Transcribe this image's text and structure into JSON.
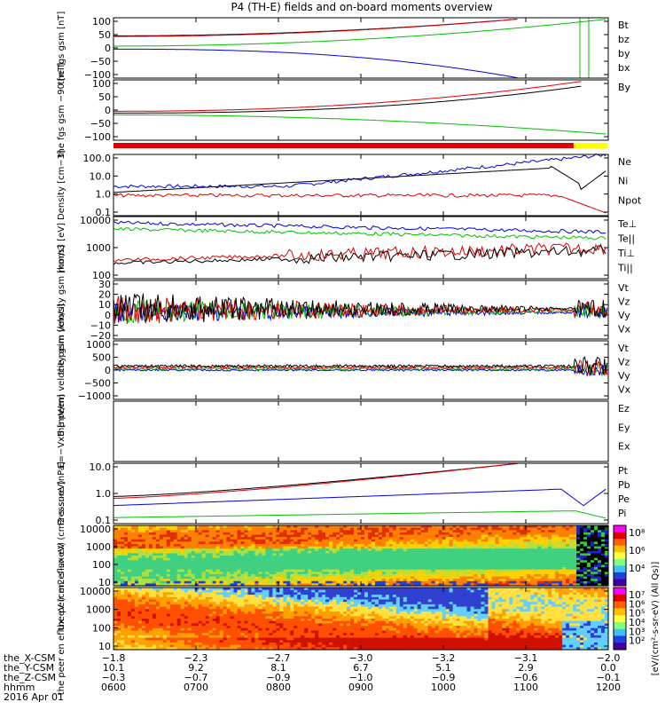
{
  "title": "P4 (TH-E) fields and on-board moments overview",
  "colors": {
    "black": "#000000",
    "red": "#e00000",
    "green": "#00c000",
    "blue": "#0000e0"
  },
  "panels": [
    {
      "ylabel": "the fgs gsm [nT]",
      "yticks": [
        "100",
        "50",
        "0",
        "−50",
        "−100"
      ],
      "legend": [
        {
          "text": "Bt",
          "color": "#000"
        },
        {
          "text": "bz",
          "color": "#e00000"
        },
        {
          "text": "by",
          "color": "#00c000"
        },
        {
          "text": "bx",
          "color": "#0000e0"
        }
      ]
    },
    {
      "ylabel": "the fgs gsm −90 [nT]",
      "yticks": [
        "100",
        "50",
        "0",
        "−50",
        "−100"
      ],
      "legend": [
        {
          "text": "By",
          "color": "#00c000"
        }
      ]
    },
    {
      "ylabel": "Density [cm−3]",
      "yticks": [
        "100.0",
        "10.0",
        "1.0",
        "0.1"
      ],
      "legend": [
        {
          "text": "Ne",
          "color": "#e00000"
        },
        {
          "text": "Ni",
          "color": "#000"
        },
        {
          "text": "Npot",
          "color": "#0000e0"
        }
      ]
    },
    {
      "ylabel": "mom3 [eV]",
      "yticks": [
        "10000",
        "1000",
        "100"
      ],
      "legend": [
        {
          "text": "Te⊥",
          "color": "#e00000"
        },
        {
          "text": "Te||",
          "color": "#000"
        },
        {
          "text": "Ti⊥",
          "color": "#e0a000"
        },
        {
          "text": "Ti||",
          "color": "#00c000"
        }
      ]
    },
    {
      "ylabel": "the peim velocity gsm [km/s]",
      "yticks": [
        "30",
        "20",
        "10",
        "0",
        "−10",
        "−20"
      ],
      "legend": [
        {
          "text": "Vt",
          "color": "#000"
        },
        {
          "text": "Vz",
          "color": "#e00000"
        },
        {
          "text": "Vy",
          "color": "#00c000"
        },
        {
          "text": "Vx",
          "color": "#0000e0"
        }
      ]
    },
    {
      "ylabel": "the peem velocity gsm [km/s]",
      "yticks": [
        "1000",
        "500",
        "0",
        "−500",
        "−1000"
      ],
      "legend": [
        {
          "text": "Vt",
          "color": "#000"
        },
        {
          "text": "Vz",
          "color": "#e00000"
        },
        {
          "text": "Vy",
          "color": "#00c000"
        },
        {
          "text": "Vx",
          "color": "#0000e0"
        }
      ]
    },
    {
      "ylabel": "E=−VxB [mV/m]",
      "yticks": [],
      "legend": [
        {
          "text": "Ez",
          "color": "#e00000"
        },
        {
          "text": "Ey",
          "color": "#00c000"
        },
        {
          "text": "Ex",
          "color": "#0000e0"
        }
      ]
    },
    {
      "ylabel": "Pressure [nPa]",
      "yticks": [
        "10.0",
        "1.0",
        "0.1"
      ],
      "legend": [
        {
          "text": "Pt",
          "color": "#000"
        },
        {
          "text": "Pb",
          "color": "#e00000"
        },
        {
          "text": "Pe",
          "color": "#00c000"
        },
        {
          "text": "Pi",
          "color": "#0000e0"
        }
      ]
    },
    {
      "ylabel": "the peir en eflux eV (cm2-s-sr-eV)",
      "yticks": [
        "10000",
        "1000",
        "100",
        "10"
      ],
      "colorbar": [
        "10⁸",
        "10⁶",
        "10⁴"
      ],
      "legend": []
    },
    {
      "ylabel": "the peer en eflux eV (cm2-s-sr-eV)",
      "yticks": [
        "10000",
        "1000",
        "100",
        "10"
      ],
      "colorbar": [
        "10⁷",
        "10⁶",
        "10⁵",
        "10⁴",
        "10³",
        "10²"
      ],
      "legend": []
    }
  ],
  "colorbar_label": "[eV/(cm²-s-sr-eV) (All Qs)]",
  "footer": {
    "row_labels": [
      "the_X-CSM",
      "the_Y-CSM",
      "the_Z-CSM",
      "hhmm",
      "2016 Apr 01"
    ],
    "columns": [
      {
        "x": "−1.8",
        "y": "10.1",
        "z": "−0.3",
        "t": "0600"
      },
      {
        "x": "−2.3",
        "y": "9.2",
        "z": "−0.7",
        "t": "0700"
      },
      {
        "x": "−2.7",
        "y": "8.1",
        "z": "−0.9",
        "t": "0800"
      },
      {
        "x": "−3.0",
        "y": "6.7",
        "z": "−1.0",
        "t": "0900"
      },
      {
        "x": "−3.2",
        "y": "5.1",
        "z": "−0.9",
        "t": "1000"
      },
      {
        "x": "−3.1",
        "y": "2.9",
        "z": "−0.6",
        "t": "1100"
      },
      {
        "x": "−2.0",
        "y": "0.0",
        "z": "−0.1",
        "t": "1200"
      }
    ]
  },
  "chart_data": {
    "type": "line",
    "title": "P4 (TH-E) fields and on-board moments overview",
    "x_unit": "hhmm",
    "x": [
      "0600",
      "0700",
      "0800",
      "0900",
      "1000",
      "1100",
      "1200"
    ],
    "series": [
      {
        "name": "Bt",
        "panel": 0,
        "values": [
          35,
          42,
          50,
          60,
          72,
          90,
          100
        ]
      },
      {
        "name": "bz",
        "panel": 0,
        "values": [
          35,
          42,
          50,
          60,
          72,
          90,
          100
        ]
      },
      {
        "name": "by",
        "panel": 0,
        "values": [
          5,
          12,
          18,
          26,
          36,
          50,
          80
        ]
      },
      {
        "name": "bx",
        "panel": 0,
        "values": [
          0,
          -8,
          -18,
          -30,
          -50,
          -80,
          -100
        ]
      },
      {
        "name": "By",
        "panel": 1,
        "values": [
          0,
          -10,
          -20,
          -35,
          -55,
          -80,
          -100
        ]
      },
      {
        "name": "Ni",
        "panel": 2,
        "values": [
          0.6,
          0.8,
          1.5,
          4,
          12,
          30,
          15
        ]
      },
      {
        "name": "Ne",
        "panel": 2,
        "values": [
          0.8,
          0.6,
          0.7,
          0.6,
          0.6,
          0.7,
          0.3
        ]
      },
      {
        "name": "Npot",
        "panel": 2,
        "values": [
          2,
          3,
          20,
          60,
          150,
          200,
          100
        ]
      },
      {
        "name": "Ti||",
        "panel": 3,
        "values": [
          3500,
          4000,
          4200,
          3800,
          3000,
          2000,
          5000
        ]
      },
      {
        "name": "Te||",
        "panel": 3,
        "values": [
          250,
          300,
          350,
          500,
          700,
          900,
          3000
        ]
      },
      {
        "name": "Pt",
        "panel": 7,
        "values": [
          0.7,
          1.2,
          2.0,
          4.0,
          8,
          15,
          20
        ]
      },
      {
        "name": "Pe",
        "panel": 7,
        "values": [
          0.05,
          0.06,
          0.07,
          0.08,
          0.1,
          0.12,
          0.05
        ]
      },
      {
        "name": "Pi",
        "panel": 7,
        "values": [
          0.3,
          0.25,
          0.35,
          0.6,
          1.0,
          1.5,
          0.1
        ]
      }
    ]
  }
}
